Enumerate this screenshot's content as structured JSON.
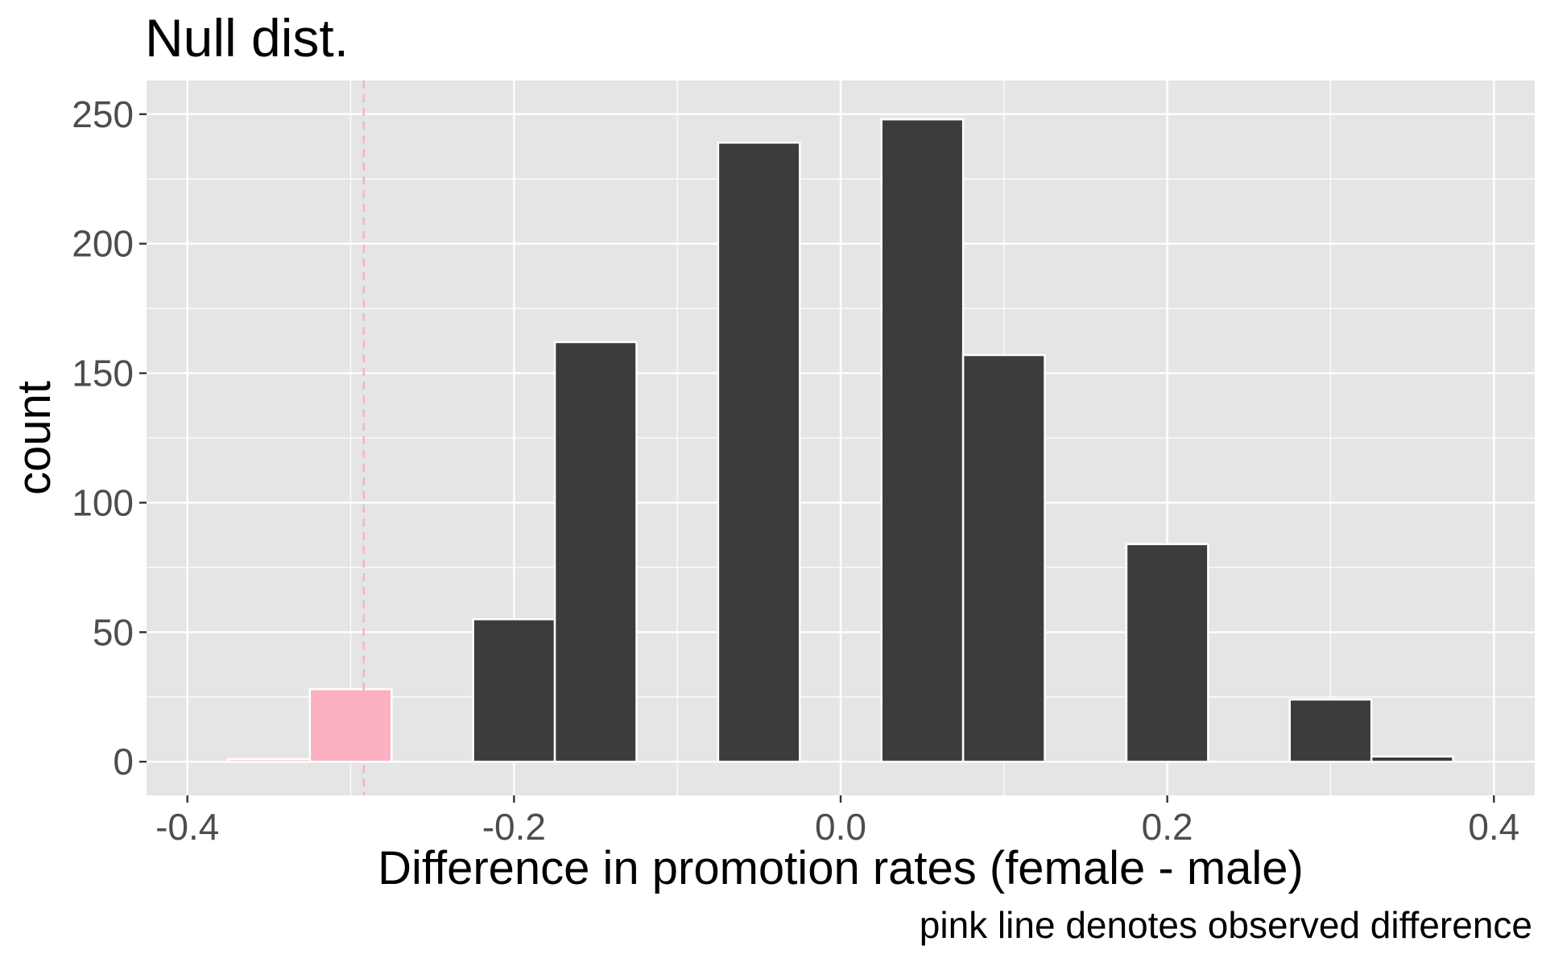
{
  "chart_data": {
    "type": "bar",
    "title": "Null dist.",
    "xlabel": "Difference in promotion rates (female - male)",
    "ylabel": "count",
    "caption": "pink line denotes observed difference",
    "xlim": [
      -0.425,
      0.425
    ],
    "ylim": [
      -13,
      263
    ],
    "x_ticks": [
      {
        "value": -0.4,
        "label": "-0.4"
      },
      {
        "value": -0.2,
        "label": "-0.2"
      },
      {
        "value": 0.0,
        "label": "0.0"
      },
      {
        "value": 0.2,
        "label": "0.2"
      },
      {
        "value": 0.4,
        "label": "0.4"
      }
    ],
    "y_ticks": [
      {
        "value": 0,
        "label": "0"
      },
      {
        "value": 50,
        "label": "50"
      },
      {
        "value": 100,
        "label": "100"
      },
      {
        "value": 150,
        "label": "150"
      },
      {
        "value": 200,
        "label": "200"
      },
      {
        "value": 250,
        "label": "250"
      }
    ],
    "bin_width": 0.05,
    "bins": [
      {
        "center": -0.35,
        "count": 1,
        "shaded": true
      },
      {
        "center": -0.3,
        "count": 28,
        "shaded": true
      },
      {
        "center": -0.25,
        "count": 0,
        "shaded": false
      },
      {
        "center": -0.2,
        "count": 55,
        "shaded": false
      },
      {
        "center": -0.15,
        "count": 162,
        "shaded": false
      },
      {
        "center": -0.1,
        "count": 0,
        "shaded": false
      },
      {
        "center": -0.05,
        "count": 239,
        "shaded": false
      },
      {
        "center": 0.0,
        "count": 0,
        "shaded": false
      },
      {
        "center": 0.05,
        "count": 248,
        "shaded": false
      },
      {
        "center": 0.1,
        "count": 157,
        "shaded": false
      },
      {
        "center": 0.15,
        "count": 0,
        "shaded": false
      },
      {
        "center": 0.2,
        "count": 84,
        "shaded": false
      },
      {
        "center": 0.25,
        "count": 0,
        "shaded": false
      },
      {
        "center": 0.3,
        "count": 24,
        "shaded": false
      },
      {
        "center": 0.35,
        "count": 2,
        "shaded": false
      }
    ],
    "observed_difference": -0.292,
    "grid": true,
    "colors": {
      "panel_bg": "#e5e5e5",
      "grid": "#ffffff",
      "bar_fill": "#3c3c3c",
      "bar_outline": "#ffffff",
      "shaded_fill": "#fbb1c2",
      "observed_line": "#fbb1c2",
      "tick_text": "#4d4d4d",
      "title_text": "#000000"
    }
  }
}
